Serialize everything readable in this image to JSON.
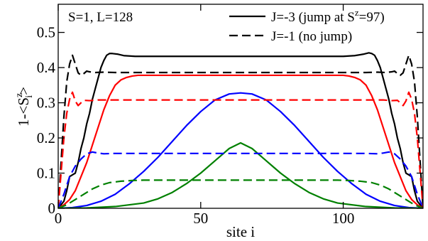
{
  "chart_data": {
    "type": "line",
    "title": "",
    "annotation": "S=1, L=128",
    "xlabel": "site i",
    "ylabel_parts": {
      "base": "1-<S",
      "sup": "z",
      "sub": "i",
      "close": ">"
    },
    "xlim": [
      0,
      128
    ],
    "ylim": [
      0,
      0.58
    ],
    "xticks": [
      0,
      50,
      100
    ],
    "xtick_labels": [
      "0",
      "50",
      "100"
    ],
    "yticks": [
      0,
      0.1,
      0.2,
      0.3,
      0.4,
      0.5
    ],
    "ytick_labels": [
      "0",
      "0.1",
      "0.2",
      "0.3",
      "0.4",
      "0.5"
    ],
    "grid": false,
    "legend_position": "top-right",
    "legend": [
      {
        "label_pre": "J=-3 (jump at S",
        "label_sup": "z",
        "label_post": "=97)",
        "dash": "solid"
      },
      {
        "label_pre": "J=-1 (no jump)",
        "label_sup": "",
        "label_post": "",
        "dash": "dashed"
      }
    ],
    "series": [
      {
        "group": "J=-3",
        "color": "#000000",
        "dash": "solid",
        "points": [
          [
            0,
            0.0
          ],
          [
            2,
            0.02
          ],
          [
            3,
            0.05
          ],
          [
            4,
            0.09
          ],
          [
            5,
            0.095
          ],
          [
            6,
            0.1
          ],
          [
            7,
            0.13
          ],
          [
            8,
            0.17
          ],
          [
            9,
            0.2
          ],
          [
            10,
            0.24
          ],
          [
            11,
            0.27
          ],
          [
            12,
            0.31
          ],
          [
            13,
            0.34
          ],
          [
            14,
            0.37
          ],
          [
            15,
            0.4
          ],
          [
            16,
            0.42
          ],
          [
            17,
            0.435
          ],
          [
            18,
            0.44
          ],
          [
            19,
            0.44
          ],
          [
            21,
            0.438
          ],
          [
            23,
            0.434
          ],
          [
            27,
            0.432
          ],
          [
            60,
            0.432
          ],
          [
            100,
            0.432
          ],
          [
            104,
            0.434
          ],
          [
            107,
            0.438
          ],
          [
            109,
            0.442
          ],
          [
            110,
            0.44
          ],
          [
            111,
            0.435
          ],
          [
            112,
            0.42
          ],
          [
            113,
            0.4
          ],
          [
            114,
            0.37
          ],
          [
            115,
            0.34
          ],
          [
            116,
            0.31
          ],
          [
            117,
            0.27
          ],
          [
            118,
            0.24
          ],
          [
            119,
            0.2
          ],
          [
            120,
            0.17
          ],
          [
            121,
            0.13
          ],
          [
            122,
            0.1
          ],
          [
            123,
            0.095
          ],
          [
            124,
            0.09
          ],
          [
            125,
            0.05
          ],
          [
            126,
            0.02
          ],
          [
            128,
            0.0
          ]
        ]
      },
      {
        "group": "J=-3",
        "color": "#ff0000",
        "dash": "solid",
        "points": [
          [
            0,
            0.0
          ],
          [
            2,
            0.01
          ],
          [
            4,
            0.025
          ],
          [
            6,
            0.05
          ],
          [
            8,
            0.09
          ],
          [
            10,
            0.13
          ],
          [
            12,
            0.18
          ],
          [
            14,
            0.23
          ],
          [
            16,
            0.28
          ],
          [
            18,
            0.32
          ],
          [
            20,
            0.35
          ],
          [
            22,
            0.365
          ],
          [
            24,
            0.372
          ],
          [
            26,
            0.376
          ],
          [
            28,
            0.378
          ],
          [
            100,
            0.378
          ],
          [
            102,
            0.376
          ],
          [
            104,
            0.372
          ],
          [
            106,
            0.365
          ],
          [
            108,
            0.35
          ],
          [
            110,
            0.32
          ],
          [
            112,
            0.28
          ],
          [
            114,
            0.23
          ],
          [
            116,
            0.18
          ],
          [
            118,
            0.13
          ],
          [
            120,
            0.09
          ],
          [
            122,
            0.05
          ],
          [
            124,
            0.025
          ],
          [
            126,
            0.01
          ],
          [
            128,
            0.0
          ]
        ]
      },
      {
        "group": "J=-3",
        "color": "#0000ff",
        "dash": "solid",
        "points": [
          [
            0,
            0.0
          ],
          [
            5,
            0.002
          ],
          [
            10,
            0.008
          ],
          [
            15,
            0.02
          ],
          [
            20,
            0.04
          ],
          [
            25,
            0.07
          ],
          [
            30,
            0.105
          ],
          [
            35,
            0.145
          ],
          [
            40,
            0.19
          ],
          [
            45,
            0.235
          ],
          [
            50,
            0.275
          ],
          [
            55,
            0.308
          ],
          [
            60,
            0.325
          ],
          [
            64,
            0.328
          ],
          [
            68,
            0.325
          ],
          [
            73,
            0.308
          ],
          [
            78,
            0.275
          ],
          [
            83,
            0.235
          ],
          [
            88,
            0.19
          ],
          [
            93,
            0.145
          ],
          [
            98,
            0.105
          ],
          [
            103,
            0.07
          ],
          [
            108,
            0.04
          ],
          [
            113,
            0.02
          ],
          [
            118,
            0.008
          ],
          [
            123,
            0.002
          ],
          [
            128,
            0.0
          ]
        ]
      },
      {
        "group": "J=-3",
        "color": "#008000",
        "dash": "solid",
        "points": [
          [
            0,
            0.0
          ],
          [
            10,
            0.001
          ],
          [
            20,
            0.005
          ],
          [
            30,
            0.015
          ],
          [
            35,
            0.027
          ],
          [
            40,
            0.045
          ],
          [
            45,
            0.07
          ],
          [
            50,
            0.1
          ],
          [
            55,
            0.135
          ],
          [
            60,
            0.17
          ],
          [
            64,
            0.186
          ],
          [
            68,
            0.17
          ],
          [
            73,
            0.135
          ],
          [
            78,
            0.1
          ],
          [
            83,
            0.07
          ],
          [
            88,
            0.045
          ],
          [
            93,
            0.027
          ],
          [
            98,
            0.015
          ],
          [
            108,
            0.005
          ],
          [
            118,
            0.001
          ],
          [
            128,
            0.0
          ]
        ]
      },
      {
        "group": "J=-1",
        "color": "#000000",
        "dash": "dashed",
        "points": [
          [
            0,
            0.0
          ],
          [
            1,
            0.13
          ],
          [
            2,
            0.26
          ],
          [
            3,
            0.36
          ],
          [
            4,
            0.41
          ],
          [
            5,
            0.435
          ],
          [
            6,
            0.41
          ],
          [
            7,
            0.385
          ],
          [
            8,
            0.378
          ],
          [
            9,
            0.383
          ],
          [
            10,
            0.39
          ],
          [
            11,
            0.388
          ],
          [
            13,
            0.386
          ],
          [
            16,
            0.387
          ],
          [
            20,
            0.386
          ],
          [
            64,
            0.386
          ],
          [
            108,
            0.386
          ],
          [
            112,
            0.387
          ],
          [
            115,
            0.386
          ],
          [
            117,
            0.388
          ],
          [
            118,
            0.39
          ],
          [
            119,
            0.383
          ],
          [
            120,
            0.378
          ],
          [
            121,
            0.385
          ],
          [
            122,
            0.41
          ],
          [
            123,
            0.435
          ],
          [
            124,
            0.41
          ],
          [
            125,
            0.36
          ],
          [
            126,
            0.26
          ],
          [
            127,
            0.13
          ],
          [
            128,
            0.0
          ]
        ]
      },
      {
        "group": "J=-1",
        "color": "#ff0000",
        "dash": "dashed",
        "points": [
          [
            0,
            0.0
          ],
          [
            1,
            0.1
          ],
          [
            2,
            0.2
          ],
          [
            3,
            0.27
          ],
          [
            4,
            0.31
          ],
          [
            5,
            0.33
          ],
          [
            6,
            0.305
          ],
          [
            7,
            0.292
          ],
          [
            8,
            0.3
          ],
          [
            9,
            0.307
          ],
          [
            11,
            0.306
          ],
          [
            14,
            0.308
          ],
          [
            20,
            0.308
          ],
          [
            64,
            0.308
          ],
          [
            108,
            0.308
          ],
          [
            114,
            0.308
          ],
          [
            117,
            0.306
          ],
          [
            119,
            0.307
          ],
          [
            120,
            0.3
          ],
          [
            121,
            0.292
          ],
          [
            122,
            0.305
          ],
          [
            123,
            0.33
          ],
          [
            124,
            0.31
          ],
          [
            125,
            0.27
          ],
          [
            126,
            0.2
          ],
          [
            127,
            0.1
          ],
          [
            128,
            0.0
          ]
        ]
      },
      {
        "group": "J=-1",
        "color": "#0000ff",
        "dash": "dashed",
        "points": [
          [
            0,
            0.0
          ],
          [
            2,
            0.04
          ],
          [
            4,
            0.09
          ],
          [
            6,
            0.12
          ],
          [
            8,
            0.14
          ],
          [
            10,
            0.155
          ],
          [
            12,
            0.16
          ],
          [
            14,
            0.157
          ],
          [
            16,
            0.155
          ],
          [
            20,
            0.156
          ],
          [
            64,
            0.156
          ],
          [
            108,
            0.156
          ],
          [
            112,
            0.155
          ],
          [
            114,
            0.157
          ],
          [
            116,
            0.16
          ],
          [
            118,
            0.155
          ],
          [
            120,
            0.14
          ],
          [
            122,
            0.12
          ],
          [
            124,
            0.09
          ],
          [
            126,
            0.04
          ],
          [
            128,
            0.0
          ]
        ]
      },
      {
        "group": "J=-1",
        "color": "#008000",
        "dash": "dashed",
        "points": [
          [
            0,
            0.0
          ],
          [
            3,
            0.01
          ],
          [
            6,
            0.025
          ],
          [
            9,
            0.04
          ],
          [
            12,
            0.055
          ],
          [
            15,
            0.066
          ],
          [
            18,
            0.073
          ],
          [
            22,
            0.077
          ],
          [
            26,
            0.079
          ],
          [
            30,
            0.08
          ],
          [
            98,
            0.08
          ],
          [
            102,
            0.079
          ],
          [
            106,
            0.077
          ],
          [
            110,
            0.073
          ],
          [
            113,
            0.066
          ],
          [
            116,
            0.055
          ],
          [
            119,
            0.04
          ],
          [
            122,
            0.025
          ],
          [
            125,
            0.01
          ],
          [
            128,
            0.0
          ]
        ]
      }
    ]
  }
}
